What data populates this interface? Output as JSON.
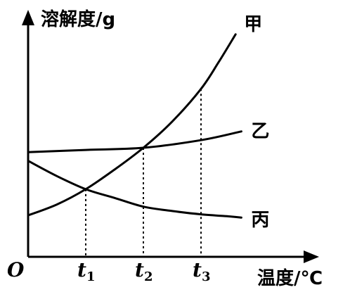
{
  "chart_data": {
    "type": "line",
    "ylabel": "溶解度/g",
    "xlabel": "温度/℃",
    "origin_label": "O",
    "xlim": [
      0,
      4
    ],
    "ylim": [
      0,
      10
    ],
    "ticks": [
      {
        "base": "t",
        "sub": "1",
        "x": 1
      },
      {
        "base": "t",
        "sub": "2",
        "x": 2
      },
      {
        "base": "t",
        "sub": "3",
        "x": 3
      }
    ],
    "intersections": [
      {
        "x": 1,
        "y": 3.1,
        "series": [
          "甲",
          "丙"
        ]
      },
      {
        "x": 2,
        "y": 5.0,
        "series": [
          "甲",
          "乙"
        ]
      }
    ],
    "guide_points": [
      {
        "x": 1,
        "y": 3.1
      },
      {
        "x": 2,
        "y": 5.0
      },
      {
        "x": 3,
        "y": 7.7
      }
    ],
    "series": [
      {
        "name": "甲",
        "x": [
          0.0,
          0.5,
          1.0,
          1.5,
          2.0,
          2.5,
          3.0,
          3.3,
          3.6
        ],
        "y": [
          1.9,
          2.4,
          3.1,
          4.0,
          5.0,
          6.2,
          7.7,
          8.9,
          10.2
        ]
      },
      {
        "name": "乙",
        "x": [
          0.0,
          1.0,
          2.0,
          3.0,
          3.7
        ],
        "y": [
          4.8,
          4.9,
          5.0,
          5.35,
          5.75
        ]
      },
      {
        "name": "丙",
        "x": [
          0.0,
          0.5,
          1.0,
          1.5,
          2.0,
          2.5,
          3.0,
          3.5,
          3.7
        ],
        "y": [
          4.4,
          3.7,
          3.1,
          2.7,
          2.3,
          2.1,
          1.95,
          1.85,
          1.8
        ]
      }
    ]
  }
}
